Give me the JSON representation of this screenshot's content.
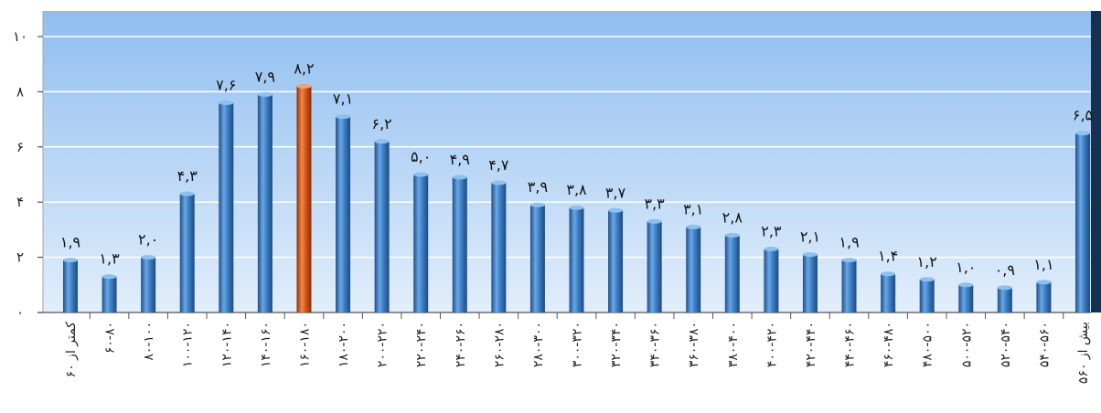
{
  "chart_data": {
    "type": "bar",
    "title": "",
    "xlabel": "",
    "ylabel": "",
    "ylim": [
      0,
      10
    ],
    "yticks": [
      "۰",
      "۲",
      "۴",
      "۶",
      "۸",
      "۱۰"
    ],
    "grid": true,
    "categories": [
      "کمتر از ۶۰",
      "۶۰-۸۰",
      "۸۰-۱۰۰",
      "۱۰۰-۱۲۰",
      "۱۲۰-۱۴۰",
      "۱۴۰-۱۶۰",
      "۱۶۰-۱۸۰",
      "۱۸۰-۲۰۰",
      "۲۰۰-۲۲۰",
      "۲۲۰-۲۴۰",
      "۲۴۰-۲۶۰",
      "۲۶۰-۲۸۰",
      "۲۸۰-۳۰۰",
      "۳۰۰-۳۲۰",
      "۳۲۰-۳۴۰",
      "۳۴۰-۳۶۰",
      "۳۶۰-۳۸۰",
      "۳۸۰-۴۰۰",
      "۴۰۰-۴۲۰",
      "۴۲۰-۴۴۰",
      "۴۴۰-۴۶۰",
      "۴۶۰-۴۸۰",
      "۴۸۰-۵۰۰",
      "۵۰۰-۵۲۰",
      "۵۲۰-۵۴۰",
      "۵۴۰-۵۶۰",
      "بیش از ۵۶۰"
    ],
    "values": [
      1.9,
      1.3,
      2.0,
      4.3,
      7.6,
      7.9,
      8.2,
      7.1,
      6.2,
      5.0,
      4.9,
      4.7,
      3.9,
      3.8,
      3.7,
      3.3,
      3.1,
      2.8,
      2.3,
      2.1,
      1.9,
      1.4,
      1.2,
      1.0,
      0.9,
      1.1,
      6.5
    ],
    "value_labels": [
      "۱,۹",
      "۱,۳",
      "۲,۰",
      "۴,۳",
      "۷,۶",
      "۷,۹",
      "۸,۲",
      "۷,۱",
      "۶,۲",
      "۵,۰",
      "۴,۹",
      "۴,۷",
      "۳,۹",
      "۳,۸",
      "۳,۷",
      "۳,۳",
      "۳,۱",
      "۲,۸",
      "۲,۳",
      "۲,۱",
      "۱,۹",
      "۱,۴",
      "۱,۲",
      "۱,۰",
      "۰,۹",
      "۱,۱",
      "۶,۵"
    ],
    "highlight_index": 6,
    "colors": {
      "bar": "#3d7fc4",
      "bar_highlight": "#d9571a",
      "background_top": "#8fbef0",
      "background_bottom": "#e2eefb",
      "gridline": "#ffffff"
    }
  }
}
